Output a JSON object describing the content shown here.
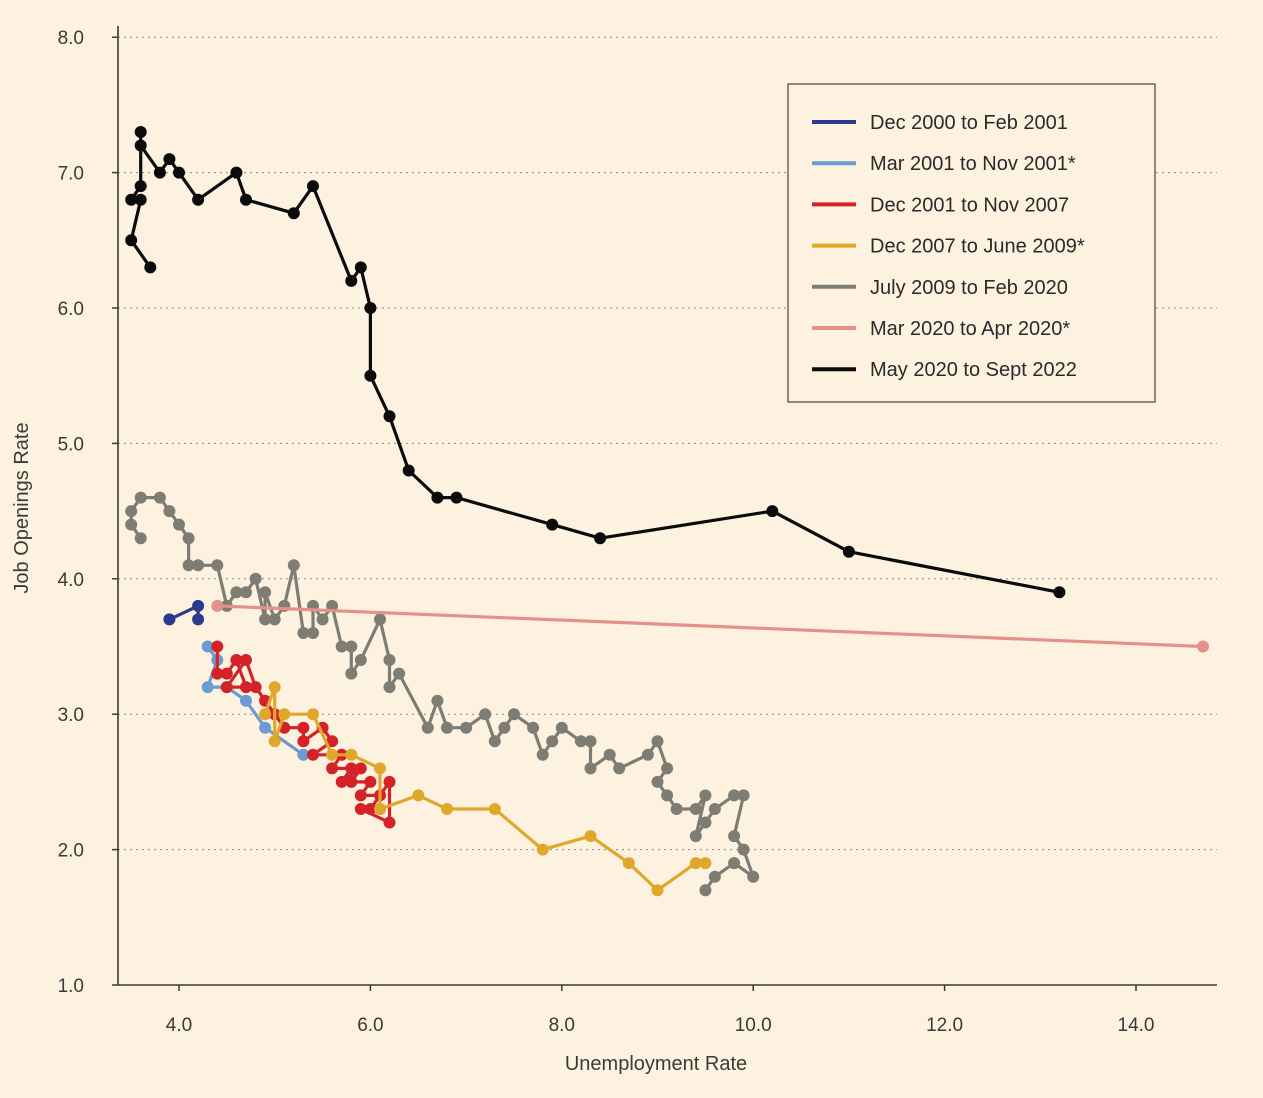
{
  "chart_data": {
    "type": "line",
    "xlabel": "Unemployment Rate",
    "ylabel": "Job Openings Rate",
    "xlim": [
      3.4,
      14.9
    ],
    "ylim": [
      1.0,
      8.0
    ],
    "x_ticks": [
      4.0,
      6.0,
      8.0,
      10.0,
      12.0,
      14.0
    ],
    "x_tick_labels": [
      "4.0",
      "6.0",
      "8.0",
      "10.0",
      "12.0",
      "14.0"
    ],
    "y_ticks": [
      1.0,
      2.0,
      3.0,
      4.0,
      5.0,
      6.0,
      7.0,
      8.0
    ],
    "y_tick_labels": [
      "1.0",
      "2.0",
      "3.0",
      "4.0",
      "5.0",
      "6.0",
      "7.0",
      "8.0"
    ],
    "grid": "horizontal dotted",
    "legend_position": "top-right",
    "series": [
      {
        "name": "Dec 2000 to Feb 2001",
        "color": "#2b3a8c",
        "points": [
          [
            3.9,
            3.7
          ],
          [
            4.2,
            3.8
          ],
          [
            4.2,
            3.7
          ]
        ]
      },
      {
        "name": "Mar 2001 to Nov 2001*",
        "color": "#6b9bd2",
        "points": [
          [
            4.3,
            3.5
          ],
          [
            4.4,
            3.4
          ],
          [
            4.3,
            3.2
          ],
          [
            4.5,
            3.2
          ],
          [
            4.7,
            3.1
          ],
          [
            4.9,
            2.9
          ],
          [
            5.3,
            2.7
          ]
        ]
      },
      {
        "name": "Dec 2001 to Nov 2007",
        "color": "#d42229",
        "points": [
          [
            4.4,
            3.5
          ],
          [
            4.4,
            3.3
          ],
          [
            4.5,
            3.3
          ],
          [
            4.6,
            3.4
          ],
          [
            4.7,
            3.2
          ],
          [
            4.5,
            3.2
          ],
          [
            4.7,
            3.4
          ],
          [
            4.8,
            3.2
          ],
          [
            4.9,
            3.1
          ],
          [
            5.0,
            3.0
          ],
          [
            5.1,
            2.9
          ],
          [
            5.3,
            2.9
          ],
          [
            5.3,
            2.8
          ],
          [
            5.5,
            2.9
          ],
          [
            5.6,
            2.8
          ],
          [
            5.4,
            2.7
          ],
          [
            5.7,
            2.7
          ],
          [
            5.6,
            2.6
          ],
          [
            5.8,
            2.6
          ],
          [
            5.7,
            2.5
          ],
          [
            5.9,
            2.6
          ],
          [
            5.8,
            2.5
          ],
          [
            6.0,
            2.5
          ],
          [
            5.9,
            2.4
          ],
          [
            6.1,
            2.4
          ],
          [
            6.0,
            2.3
          ],
          [
            6.2,
            2.5
          ],
          [
            6.2,
            2.2
          ],
          [
            5.9,
            2.3
          ],
          [
            6.1,
            2.3
          ]
        ]
      },
      {
        "name": "Dec 2007 to June 2009*",
        "color": "#e0a82a",
        "points": [
          [
            4.9,
            3.0
          ],
          [
            5.0,
            3.2
          ],
          [
            5.0,
            2.8
          ],
          [
            5.1,
            3.0
          ],
          [
            5.4,
            3.0
          ],
          [
            5.6,
            2.7
          ],
          [
            5.8,
            2.7
          ],
          [
            6.1,
            2.6
          ],
          [
            6.1,
            2.3
          ],
          [
            6.5,
            2.4
          ],
          [
            6.8,
            2.3
          ],
          [
            7.3,
            2.3
          ],
          [
            7.8,
            2.0
          ],
          [
            8.3,
            2.1
          ],
          [
            8.7,
            1.9
          ],
          [
            9.0,
            1.7
          ],
          [
            9.4,
            1.9
          ],
          [
            9.5,
            1.9
          ]
        ]
      },
      {
        "name": "July 2009 to Feb 2020",
        "color": "#7d7d74",
        "points": [
          [
            9.5,
            1.7
          ],
          [
            9.6,
            1.8
          ],
          [
            9.8,
            1.9
          ],
          [
            10.0,
            1.8
          ],
          [
            9.9,
            2.0
          ],
          [
            9.8,
            2.1
          ],
          [
            9.9,
            2.4
          ],
          [
            9.8,
            2.4
          ],
          [
            9.6,
            2.3
          ],
          [
            9.5,
            2.2
          ],
          [
            9.4,
            2.1
          ],
          [
            9.5,
            2.4
          ],
          [
            9.4,
            2.3
          ],
          [
            9.2,
            2.3
          ],
          [
            9.1,
            2.4
          ],
          [
            9.0,
            2.5
          ],
          [
            9.1,
            2.6
          ],
          [
            9.0,
            2.8
          ],
          [
            8.9,
            2.7
          ],
          [
            8.6,
            2.6
          ],
          [
            8.5,
            2.7
          ],
          [
            8.3,
            2.6
          ],
          [
            8.3,
            2.8
          ],
          [
            8.2,
            2.8
          ],
          [
            8.0,
            2.9
          ],
          [
            7.9,
            2.8
          ],
          [
            7.8,
            2.7
          ],
          [
            7.7,
            2.9
          ],
          [
            7.5,
            3.0
          ],
          [
            7.4,
            2.9
          ],
          [
            7.3,
            2.8
          ],
          [
            7.2,
            3.0
          ],
          [
            7.0,
            2.9
          ],
          [
            6.8,
            2.9
          ],
          [
            6.7,
            3.1
          ],
          [
            6.6,
            2.9
          ],
          [
            6.3,
            3.3
          ],
          [
            6.2,
            3.2
          ],
          [
            6.2,
            3.4
          ],
          [
            6.1,
            3.7
          ],
          [
            5.9,
            3.4
          ],
          [
            5.8,
            3.3
          ],
          [
            5.8,
            3.5
          ],
          [
            5.7,
            3.5
          ],
          [
            5.6,
            3.8
          ],
          [
            5.5,
            3.7
          ],
          [
            5.4,
            3.8
          ],
          [
            5.4,
            3.6
          ],
          [
            5.3,
            3.6
          ],
          [
            5.2,
            4.1
          ],
          [
            5.1,
            3.8
          ],
          [
            5.0,
            3.7
          ],
          [
            4.9,
            3.9
          ],
          [
            4.9,
            3.7
          ],
          [
            4.8,
            4.0
          ],
          [
            4.7,
            3.9
          ],
          [
            4.6,
            3.9
          ],
          [
            4.5,
            3.8
          ],
          [
            4.4,
            4.1
          ],
          [
            4.2,
            4.1
          ],
          [
            4.1,
            4.1
          ],
          [
            4.1,
            4.3
          ],
          [
            4.0,
            4.4
          ],
          [
            3.9,
            4.5
          ],
          [
            3.8,
            4.6
          ],
          [
            3.6,
            4.6
          ],
          [
            3.5,
            4.5
          ],
          [
            3.5,
            4.4
          ],
          [
            3.6,
            4.3
          ]
        ]
      },
      {
        "name": "Mar 2020 to Apr 2020*",
        "color": "#e4918c",
        "points": [
          [
            4.4,
            3.8
          ],
          [
            14.7,
            3.5
          ]
        ]
      },
      {
        "name": "May 2020 to Sept 2022",
        "color": "#0b0b0b",
        "points": [
          [
            13.2,
            3.9
          ],
          [
            11.0,
            4.2
          ],
          [
            10.2,
            4.5
          ],
          [
            8.4,
            4.3
          ],
          [
            7.9,
            4.4
          ],
          [
            6.9,
            4.6
          ],
          [
            6.7,
            4.6
          ],
          [
            6.4,
            4.8
          ],
          [
            6.2,
            5.2
          ],
          [
            6.0,
            5.5
          ],
          [
            6.0,
            6.0
          ],
          [
            5.9,
            6.3
          ],
          [
            5.8,
            6.2
          ],
          [
            5.4,
            6.9
          ],
          [
            5.2,
            6.7
          ],
          [
            4.7,
            6.8
          ],
          [
            4.6,
            7.0
          ],
          [
            4.2,
            6.8
          ],
          [
            4.0,
            7.0
          ],
          [
            3.9,
            7.1
          ],
          [
            3.8,
            7.0
          ],
          [
            3.6,
            7.2
          ],
          [
            3.6,
            7.3
          ],
          [
            3.6,
            6.9
          ],
          [
            3.5,
            6.8
          ],
          [
            3.6,
            6.8
          ],
          [
            3.5,
            6.5
          ],
          [
            3.7,
            6.3
          ]
        ]
      }
    ]
  }
}
